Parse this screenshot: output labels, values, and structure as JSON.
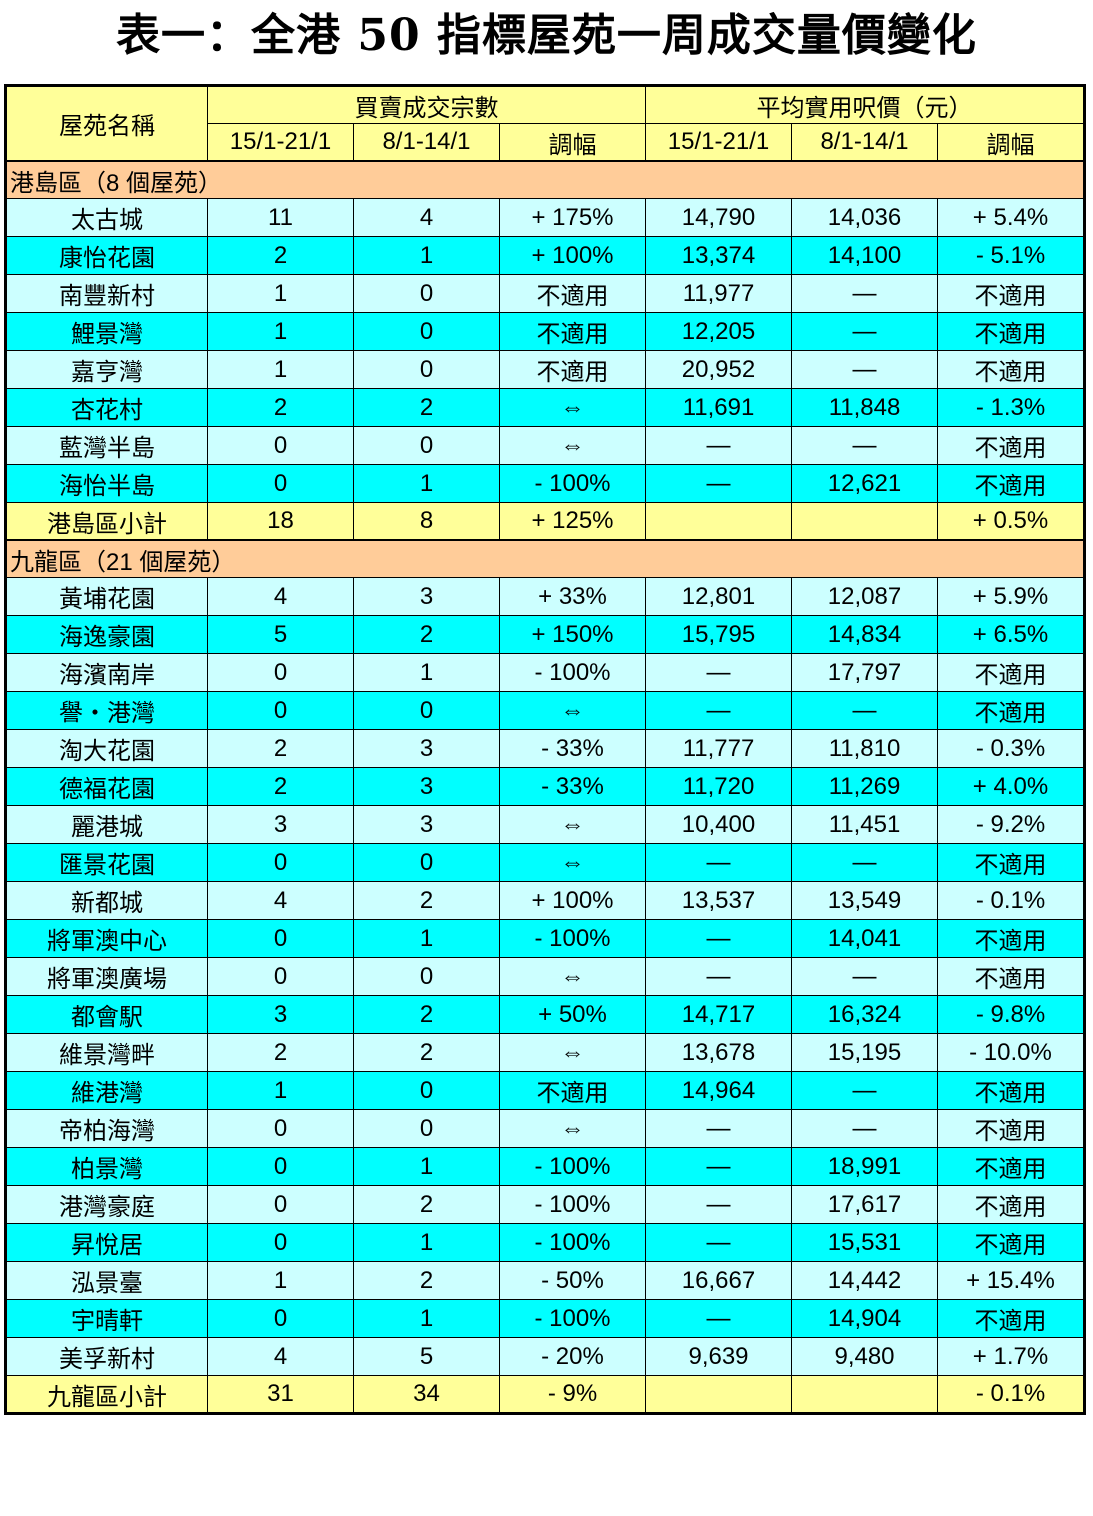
{
  "title": "表一：全港 50 指標屋苑一周成交量價變化",
  "header": {
    "estate_label": "屋苑名稱",
    "volume_group": "買賣成交宗數",
    "price_group": "平均實用呎價（元）",
    "period_current": "15/1-21/1",
    "period_previous": "8/1-14/1",
    "change_label": "調幅"
  },
  "sections": [
    {
      "label": "港島區（8 個屋苑）",
      "rows": [
        {
          "name": "太古城",
          "vol_cur": "11",
          "vol_prev": "4",
          "vol_chg": "+ 175%",
          "price_cur": "14,790",
          "price_prev": "14,036",
          "price_chg": "+ 5.4%"
        },
        {
          "name": "康怡花園",
          "vol_cur": "2",
          "vol_prev": "1",
          "vol_chg": "+ 100%",
          "price_cur": "13,374",
          "price_prev": "14,100",
          "price_chg": "- 5.1%"
        },
        {
          "name": "南豐新村",
          "vol_cur": "1",
          "vol_prev": "0",
          "vol_chg": "不適用",
          "price_cur": "11,977",
          "price_prev": "—",
          "price_chg": "不適用"
        },
        {
          "name": "鯉景灣",
          "vol_cur": "1",
          "vol_prev": "0",
          "vol_chg": "不適用",
          "price_cur": "12,205",
          "price_prev": "—",
          "price_chg": "不適用"
        },
        {
          "name": "嘉亨灣",
          "vol_cur": "1",
          "vol_prev": "0",
          "vol_chg": "不適用",
          "price_cur": "20,952",
          "price_prev": "—",
          "price_chg": "不適用"
        },
        {
          "name": "杏花村",
          "vol_cur": "2",
          "vol_prev": "2",
          "vol_chg": "⇔",
          "price_cur": "11,691",
          "price_prev": "11,848",
          "price_chg": "- 1.3%"
        },
        {
          "name": "藍灣半島",
          "vol_cur": "0",
          "vol_prev": "0",
          "vol_chg": "⇔",
          "price_cur": "—",
          "price_prev": "—",
          "price_chg": "不適用"
        },
        {
          "name": "海怡半島",
          "vol_cur": "0",
          "vol_prev": "1",
          "vol_chg": "- 100%",
          "price_cur": "—",
          "price_prev": "12,621",
          "price_chg": "不適用"
        }
      ],
      "subtotal": {
        "name": "港島區小計",
        "vol_cur": "18",
        "vol_prev": "8",
        "vol_chg": "+ 125%",
        "price_cur": "",
        "price_prev": "",
        "price_chg": "+ 0.5%"
      }
    },
    {
      "label": "九龍區（21 個屋苑）",
      "rows": [
        {
          "name": "黃埔花園",
          "vol_cur": "4",
          "vol_prev": "3",
          "vol_chg": "+ 33%",
          "price_cur": "12,801",
          "price_prev": "12,087",
          "price_chg": "+ 5.9%"
        },
        {
          "name": "海逸豪園",
          "vol_cur": "5",
          "vol_prev": "2",
          "vol_chg": "+ 150%",
          "price_cur": "15,795",
          "price_prev": "14,834",
          "price_chg": "+ 6.5%"
        },
        {
          "name": "海濱南岸",
          "vol_cur": "0",
          "vol_prev": "1",
          "vol_chg": "- 100%",
          "price_cur": "—",
          "price_prev": "17,797",
          "price_chg": "不適用"
        },
        {
          "name": "譽・港灣",
          "vol_cur": "0",
          "vol_prev": "0",
          "vol_chg": "⇔",
          "price_cur": "—",
          "price_prev": "—",
          "price_chg": "不適用"
        },
        {
          "name": "淘大花園",
          "vol_cur": "2",
          "vol_prev": "3",
          "vol_chg": "- 33%",
          "price_cur": "11,777",
          "price_prev": "11,810",
          "price_chg": "- 0.3%"
        },
        {
          "name": "德福花園",
          "vol_cur": "2",
          "vol_prev": "3",
          "vol_chg": "- 33%",
          "price_cur": "11,720",
          "price_prev": "11,269",
          "price_chg": "+ 4.0%"
        },
        {
          "name": "麗港城",
          "vol_cur": "3",
          "vol_prev": "3",
          "vol_chg": "⇔",
          "price_cur": "10,400",
          "price_prev": "11,451",
          "price_chg": "- 9.2%"
        },
        {
          "name": "匯景花園",
          "vol_cur": "0",
          "vol_prev": "0",
          "vol_chg": "⇔",
          "price_cur": "—",
          "price_prev": "—",
          "price_chg": "不適用"
        },
        {
          "name": "新都城",
          "vol_cur": "4",
          "vol_prev": "2",
          "vol_chg": "+ 100%",
          "price_cur": "13,537",
          "price_prev": "13,549",
          "price_chg": "- 0.1%"
        },
        {
          "name": "將軍澳中心",
          "vol_cur": "0",
          "vol_prev": "1",
          "vol_chg": "- 100%",
          "price_cur": "—",
          "price_prev": "14,041",
          "price_chg": "不適用"
        },
        {
          "name": "將軍澳廣場",
          "vol_cur": "0",
          "vol_prev": "0",
          "vol_chg": "⇔",
          "price_cur": "—",
          "price_prev": "—",
          "price_chg": "不適用"
        },
        {
          "name": "都會駅",
          "vol_cur": "3",
          "vol_prev": "2",
          "vol_chg": "+ 50%",
          "price_cur": "14,717",
          "price_prev": "16,324",
          "price_chg": "- 9.8%"
        },
        {
          "name": "維景灣畔",
          "vol_cur": "2",
          "vol_prev": "2",
          "vol_chg": "⇔",
          "price_cur": "13,678",
          "price_prev": "15,195",
          "price_chg": "- 10.0%"
        },
        {
          "name": "維港灣",
          "vol_cur": "1",
          "vol_prev": "0",
          "vol_chg": "不適用",
          "price_cur": "14,964",
          "price_prev": "—",
          "price_chg": "不適用"
        },
        {
          "name": "帝柏海灣",
          "vol_cur": "0",
          "vol_prev": "0",
          "vol_chg": "⇔",
          "price_cur": "—",
          "price_prev": "—",
          "price_chg": "不適用"
        },
        {
          "name": "柏景灣",
          "vol_cur": "0",
          "vol_prev": "1",
          "vol_chg": "- 100%",
          "price_cur": "—",
          "price_prev": "18,991",
          "price_chg": "不適用"
        },
        {
          "name": "港灣豪庭",
          "vol_cur": "0",
          "vol_prev": "2",
          "vol_chg": "- 100%",
          "price_cur": "—",
          "price_prev": "17,617",
          "price_chg": "不適用"
        },
        {
          "name": "昇悅居",
          "vol_cur": "0",
          "vol_prev": "1",
          "vol_chg": "- 100%",
          "price_cur": "—",
          "price_prev": "15,531",
          "price_chg": "不適用"
        },
        {
          "name": "泓景臺",
          "vol_cur": "1",
          "vol_prev": "2",
          "vol_chg": "- 50%",
          "price_cur": "16,667",
          "price_prev": "14,442",
          "price_chg": "+ 15.4%"
        },
        {
          "name": "宇晴軒",
          "vol_cur": "0",
          "vol_prev": "1",
          "vol_chg": "- 100%",
          "price_cur": "—",
          "price_prev": "14,904",
          "price_chg": "不適用"
        },
        {
          "name": "美孚新村",
          "vol_cur": "4",
          "vol_prev": "5",
          "vol_chg": "- 20%",
          "price_cur": "9,639",
          "price_prev": "9,480",
          "price_chg": "+ 1.7%"
        }
      ],
      "subtotal": {
        "name": "九龍區小計",
        "vol_cur": "31",
        "vol_prev": "34",
        "vol_chg": "- 9%",
        "price_cur": "",
        "price_prev": "",
        "price_chg": "- 0.1%"
      }
    }
  ],
  "colors": {
    "header_bg": "#ffff99",
    "section_bg": "#ffcc99",
    "row_light": "#ccffff",
    "row_cyan": "#00ffff",
    "subtotal_bg": "#ffff99"
  }
}
